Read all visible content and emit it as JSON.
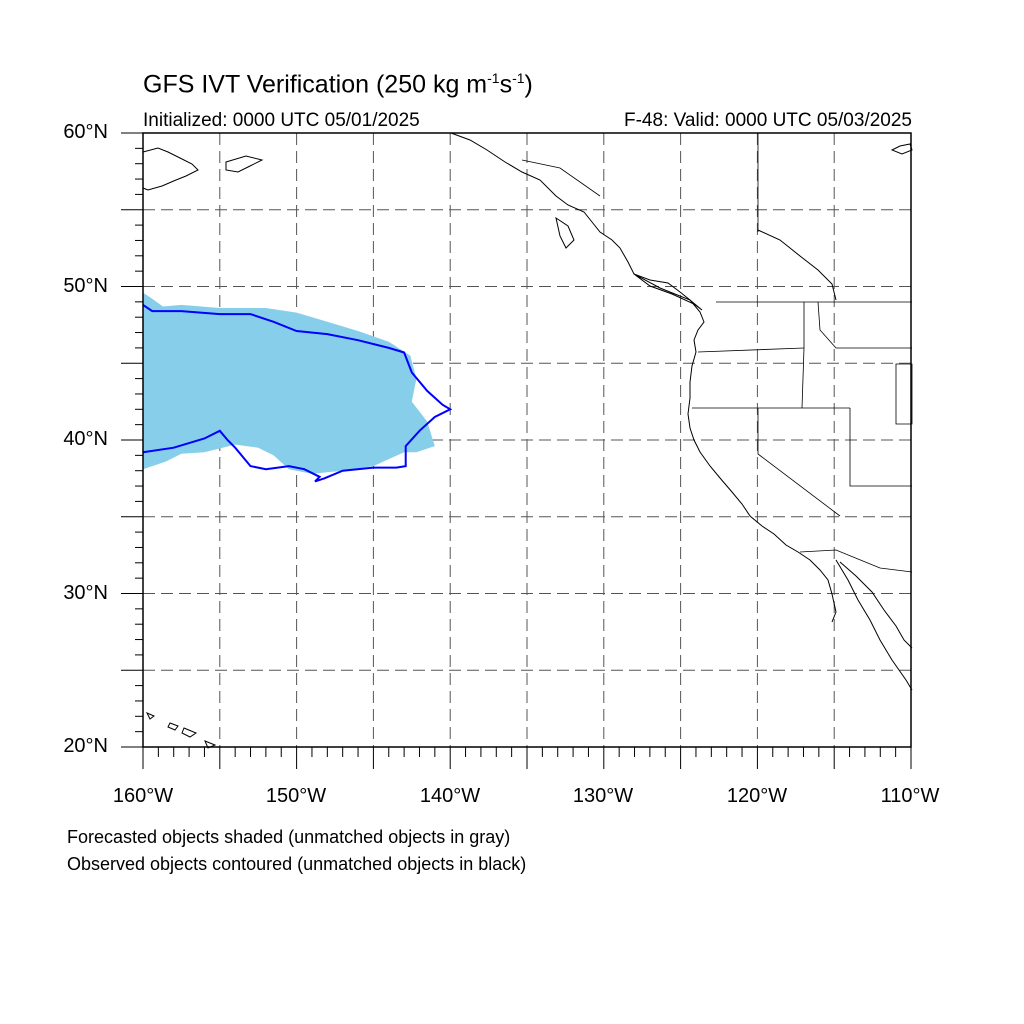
{
  "title": {
    "main": "GFS IVT Verification (250 kg m",
    "exp1": "-1",
    "mid": "s",
    "exp2": "-1",
    "end": ")"
  },
  "initialized": "Initialized: 0000 UTC 05/01/2025",
  "valid": "F-48: Valid: 0000 UTC 05/03/2025",
  "lat_labels": [
    "60°N",
    "50°N",
    "40°N",
    "30°N",
    "20°N"
  ],
  "lon_labels": [
    "160°W",
    "150°W",
    "140°W",
    "130°W",
    "120°W",
    "110°W"
  ],
  "footer": {
    "line1": "Forecasted objects shaded (unmatched objects in gray)",
    "line2": "Observed objects contoured (unmatched objects in black)"
  },
  "map": {
    "lat_range": [
      20,
      60
    ],
    "lon_range": [
      -160,
      -110
    ],
    "grid_spacing_deg": 5,
    "forecast_fill_color": "#87ceeb",
    "observed_contour_color": "#0000ff",
    "coastline_color": "#000000",
    "forecast_object": [
      [
        -160,
        49.6
      ],
      [
        -159.4,
        49.2
      ],
      [
        -158.7,
        48.7
      ],
      [
        -157.5,
        48.8
      ],
      [
        -155,
        48.6
      ],
      [
        -152,
        48.6
      ],
      [
        -150,
        48.3
      ],
      [
        -148,
        47.7
      ],
      [
        -146,
        47.1
      ],
      [
        -144,
        46.4
      ],
      [
        -142.6,
        45.5
      ],
      [
        -142.2,
        44
      ],
      [
        -142.5,
        42.5
      ],
      [
        -141.5,
        41.2
      ],
      [
        -141,
        39.6
      ],
      [
        -142.2,
        39.2
      ],
      [
        -143,
        39.2
      ],
      [
        -145,
        38.3
      ],
      [
        -147,
        38
      ],
      [
        -149,
        37.8
      ],
      [
        -150.5,
        38.1
      ],
      [
        -151.5,
        39
      ],
      [
        -152.5,
        39.5
      ],
      [
        -154,
        39.7
      ],
      [
        -156,
        39.2
      ],
      [
        -157.5,
        39.1
      ],
      [
        -158.5,
        38.6
      ],
      [
        -160,
        38.1
      ]
    ],
    "observed_object": [
      [
        -160,
        48.8
      ],
      [
        -159.4,
        48.4
      ],
      [
        -157.5,
        48.4
      ],
      [
        -155,
        48.2
      ],
      [
        -153,
        48.2
      ],
      [
        -151.5,
        47.7
      ],
      [
        -150,
        47.1
      ],
      [
        -148,
        46.9
      ],
      [
        -146,
        46.5
      ],
      [
        -144,
        46.0
      ],
      [
        -143,
        45.7
      ],
      [
        -142.5,
        44.4
      ],
      [
        -141.5,
        43.2
      ],
      [
        -140.5,
        42.3
      ],
      [
        -140,
        42.0
      ],
      [
        -141,
        41.5
      ],
      [
        -142,
        40.6
      ],
      [
        -142.9,
        39.6
      ],
      [
        -142.9,
        38.3
      ],
      [
        -143.5,
        38.2
      ],
      [
        -145,
        38.2
      ],
      [
        -147,
        38.0
      ],
      [
        -148.2,
        37.5
      ],
      [
        -148.8,
        37.3
      ],
      [
        -148.5,
        37.6
      ],
      [
        -149.5,
        38.1
      ],
      [
        -150.5,
        38.3
      ],
      [
        -152,
        38.1
      ],
      [
        -153,
        38.3
      ],
      [
        -154,
        39.5
      ],
      [
        -154.5,
        40.0
      ],
      [
        -155,
        40.6
      ],
      [
        -156,
        40.1
      ],
      [
        -158,
        39.5
      ],
      [
        -160,
        39.2
      ]
    ]
  }
}
